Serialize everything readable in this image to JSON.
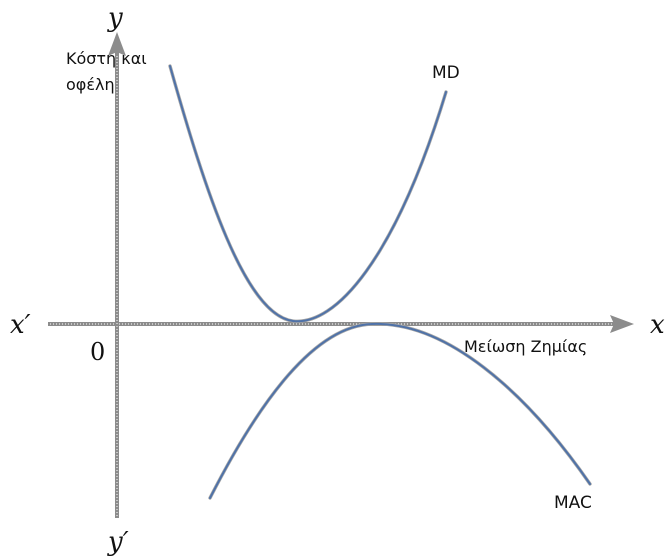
{
  "axes": {
    "x_label": "x",
    "x_neg_label": "x′",
    "y_label": "y",
    "y_neg_label": "y′",
    "origin_label": "0",
    "y_axis_title_line1": "Κόστη και",
    "y_axis_title_line2": "οφέλη",
    "x_axis_title": "Μείωση Ζημίας"
  },
  "curves": {
    "md_label": "MD",
    "mac_label": "MAC"
  },
  "colors": {
    "axis": "#8c8c8c",
    "curve": "#4f72a8",
    "text": "#111111"
  }
}
